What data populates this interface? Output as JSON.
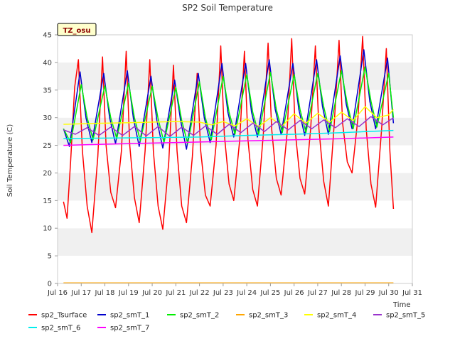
{
  "chart_data": {
    "type": "line",
    "title": "SP2 Soil Temperature",
    "xlabel": "Time",
    "ylabel": "Soil Temperature (C)",
    "tag": "TZ_osu",
    "xlim": [
      16,
      31
    ],
    "ylim": [
      0,
      45
    ],
    "x_ticks": [
      16,
      17,
      18,
      19,
      20,
      21,
      22,
      23,
      24,
      25,
      26,
      27,
      28,
      29,
      30,
      31
    ],
    "x_tick_labels": [
      "Jul 16",
      "Jul 17",
      "Jul 18",
      "Jul 19",
      "Jul 20",
      "Jul 21",
      "Jul 22",
      "Jul 23",
      "Jul 24",
      "Jul 25",
      "Jul 26",
      "Jul 27",
      "Jul 28",
      "Jul 29",
      "Jul 30",
      "Jul 31"
    ],
    "y_ticks": [
      0,
      5,
      10,
      15,
      20,
      25,
      30,
      35,
      40,
      45
    ],
    "y_tick_labels": [
      "0",
      "5",
      "10",
      "15",
      "20",
      "25",
      "30",
      "35",
      "40",
      "45"
    ],
    "series": [
      {
        "name": "sp2_Tsurface",
        "color": "#ff0000",
        "x": [
          16.25,
          16.4,
          16.55,
          16.72,
          16.88,
          17.05,
          17.25,
          17.45,
          17.7,
          17.9,
          18.05,
          18.25,
          18.45,
          18.7,
          18.9,
          19.05,
          19.25,
          19.45,
          19.7,
          19.9,
          20.05,
          20.25,
          20.45,
          20.7,
          20.9,
          21.05,
          21.25,
          21.45,
          21.7,
          21.9,
          22.05,
          22.25,
          22.45,
          22.7,
          22.9,
          23.05,
          23.25,
          23.45,
          23.7,
          23.9,
          24.05,
          24.25,
          24.45,
          24.7,
          24.9,
          25.05,
          25.25,
          25.45,
          25.7,
          25.9,
          26.05,
          26.25,
          26.45,
          26.7,
          26.9,
          27.05,
          27.25,
          27.45,
          27.7,
          27.9,
          28.05,
          28.25,
          28.45,
          28.7,
          28.9,
          29.05,
          29.25,
          29.45,
          29.7,
          29.9,
          30.05,
          30.2
        ],
        "values": [
          14.8,
          11.8,
          22.0,
          35.5,
          40.5,
          24.0,
          14.0,
          9.2,
          23.0,
          41.0,
          25.0,
          16.5,
          13.7,
          24.0,
          42.0,
          25.0,
          15.5,
          11.0,
          24.0,
          40.5,
          24.0,
          14.0,
          9.8,
          22.0,
          39.5,
          24.0,
          14.0,
          11.0,
          23.0,
          38.0,
          24.0,
          16.0,
          14.0,
          25.0,
          43.0,
          27.0,
          18.0,
          15.0,
          26.0,
          42.0,
          26.0,
          17.0,
          14.0,
          27.0,
          43.5,
          28.0,
          19.0,
          16.0,
          27.0,
          44.3,
          27.5,
          19.0,
          16.2,
          28.0,
          43.0,
          28.0,
          18.5,
          14.0,
          29.0,
          44.0,
          29.0,
          22.0,
          20.0,
          30.0,
          44.7,
          28.0,
          18.0,
          13.8,
          28.0,
          42.5,
          24.0,
          13.5
        ]
      },
      {
        "name": "sp2_smT_1",
        "color": "#0000cc",
        "x": [
          16.25,
          16.5,
          16.95,
          17.2,
          17.45,
          17.95,
          18.2,
          18.45,
          18.95,
          19.2,
          19.45,
          19.95,
          20.2,
          20.45,
          20.95,
          21.2,
          21.45,
          21.95,
          22.2,
          22.45,
          22.95,
          23.2,
          23.45,
          23.95,
          24.2,
          24.45,
          24.95,
          25.2,
          25.45,
          25.95,
          26.2,
          26.45,
          26.95,
          27.2,
          27.45,
          27.95,
          28.2,
          28.45,
          28.95,
          29.2,
          29.45,
          29.95,
          30.2
        ],
        "values": [
          28.0,
          24.8,
          38.3,
          30.0,
          25.5,
          38.0,
          30.0,
          25.3,
          38.5,
          30.0,
          24.8,
          37.5,
          29.5,
          24.5,
          36.8,
          29.5,
          24.3,
          38.0,
          30.0,
          25.5,
          39.8,
          31.0,
          26.5,
          39.8,
          31.0,
          26.5,
          40.5,
          31.5,
          27.0,
          39.8,
          31.5,
          26.8,
          40.5,
          32.0,
          27.0,
          41.2,
          32.5,
          28.0,
          42.3,
          33.0,
          28.0,
          40.8,
          29.0
        ]
      },
      {
        "name": "sp2_smT_2",
        "color": "#00ee00",
        "x": [
          16.25,
          16.55,
          17.0,
          17.25,
          17.5,
          18.0,
          18.25,
          18.5,
          19.0,
          19.25,
          19.5,
          20.0,
          20.25,
          20.5,
          21.0,
          21.25,
          21.5,
          22.0,
          22.25,
          22.5,
          23.0,
          23.25,
          23.5,
          24.0,
          24.25,
          24.5,
          25.0,
          25.25,
          25.5,
          26.0,
          26.25,
          26.5,
          27.0,
          27.25,
          27.5,
          28.0,
          28.25,
          28.5,
          29.0,
          29.25,
          29.5,
          30.0,
          30.2
        ],
        "values": [
          28.0,
          25.5,
          36.0,
          30.0,
          26.0,
          35.8,
          30.0,
          26.2,
          36.2,
          30.0,
          25.8,
          35.7,
          29.8,
          25.5,
          35.5,
          29.5,
          25.3,
          36.5,
          30.0,
          26.0,
          37.5,
          31.0,
          27.0,
          37.8,
          31.0,
          27.0,
          38.2,
          31.5,
          27.3,
          37.8,
          31.5,
          27.3,
          38.0,
          32.0,
          27.5,
          38.5,
          32.5,
          28.0,
          39.2,
          33.0,
          28.3,
          38.0,
          30.0
        ]
      },
      {
        "name": "sp2_smT_3",
        "color": "#ffa500",
        "x": [
          16.25,
          30.2
        ],
        "values": [
          0.1,
          0.1
        ]
      },
      {
        "name": "sp2_smT_4",
        "color": "#ffff00",
        "x": [
          16.25,
          17.0,
          18.0,
          19.0,
          20.0,
          21.0,
          22.0,
          22.5,
          23.0,
          23.5,
          24.0,
          24.5,
          25.0,
          25.5,
          26.0,
          26.5,
          27.0,
          27.5,
          28.0,
          28.5,
          29.0,
          29.5,
          30.0,
          30.2
        ],
        "values": [
          28.8,
          28.9,
          29.0,
          29.1,
          29.2,
          29.3,
          29.2,
          28.7,
          29.3,
          28.5,
          29.8,
          28.4,
          30.0,
          28.5,
          30.7,
          29.0,
          30.8,
          29.2,
          31.0,
          29.5,
          32.0,
          30.0,
          30.5,
          31.5
        ]
      },
      {
        "name": "sp2_smT_5",
        "color": "#9933cc",
        "x": [
          16.25,
          16.75,
          17.25,
          17.75,
          18.25,
          18.75,
          19.25,
          19.75,
          20.25,
          20.75,
          21.25,
          21.75,
          22.25,
          22.75,
          23.25,
          23.75,
          24.25,
          24.75,
          25.25,
          25.75,
          26.25,
          26.75,
          27.25,
          27.75,
          28.25,
          28.75,
          29.25,
          29.75,
          30.2
        ],
        "values": [
          27.8,
          27.0,
          28.2,
          26.8,
          28.3,
          26.8,
          28.4,
          26.7,
          28.4,
          26.6,
          28.3,
          26.8,
          28.5,
          27.0,
          28.8,
          27.3,
          29.0,
          27.5,
          29.3,
          27.8,
          29.5,
          28.0,
          29.6,
          28.2,
          29.8,
          28.4,
          30.2,
          28.7,
          30.0
        ]
      },
      {
        "name": "sp2_smT_6",
        "color": "#00eeee",
        "x": [
          16.25,
          18.0,
          20.0,
          22.0,
          24.0,
          26.0,
          28.0,
          30.2
        ],
        "values": [
          26.2,
          26.3,
          26.4,
          26.5,
          26.8,
          27.0,
          27.3,
          27.7
        ]
      },
      {
        "name": "sp2_smT_7",
        "color": "#ff00ff",
        "x": [
          16.25,
          18.0,
          20.0,
          22.0,
          24.0,
          26.0,
          28.0,
          30.2
        ],
        "values": [
          25.0,
          25.2,
          25.4,
          25.6,
          25.8,
          26.0,
          26.2,
          26.5
        ]
      }
    ],
    "legend_position": "bottom"
  }
}
